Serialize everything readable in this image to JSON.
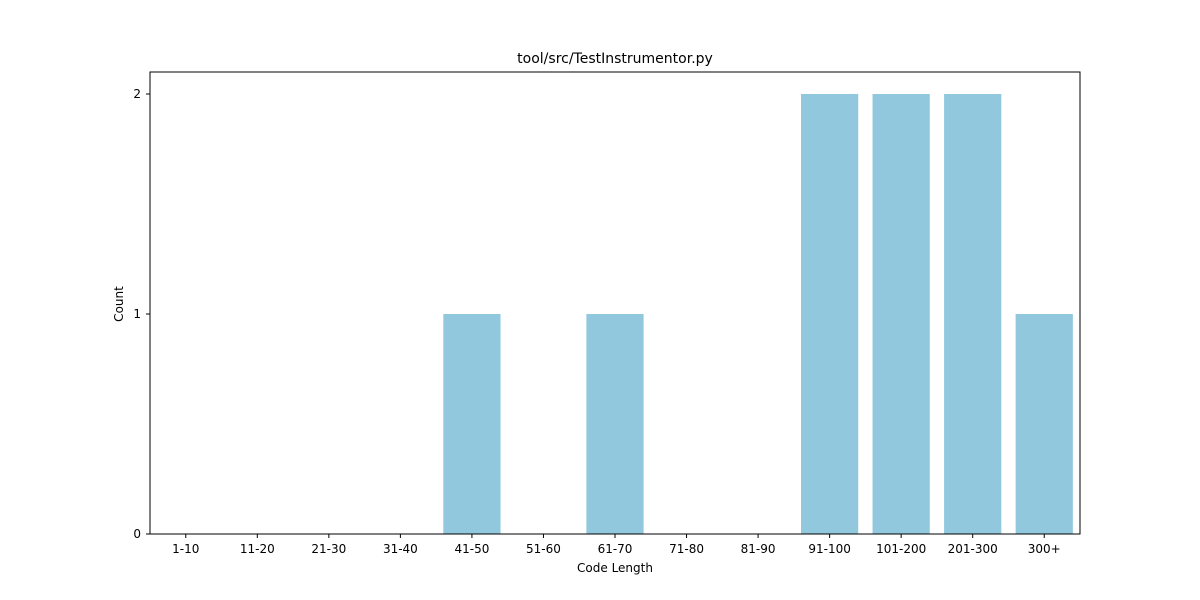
{
  "chart_data": {
    "type": "bar",
    "title": "tool/src/TestInstrumentor.py",
    "xlabel": "Code Length",
    "ylabel": "Count",
    "categories": [
      "1-10",
      "11-20",
      "21-30",
      "31-40",
      "41-50",
      "51-60",
      "61-70",
      "71-80",
      "81-90",
      "91-100",
      "101-200",
      "201-300",
      "300+"
    ],
    "values": [
      0,
      0,
      0,
      0,
      1,
      0,
      1,
      0,
      0,
      2,
      2,
      2,
      1
    ],
    "ylim": [
      0,
      2.1
    ],
    "yticks": [
      0,
      1,
      2
    ],
    "bar_color": "#92c8dd",
    "grid": false,
    "legend": false
  }
}
